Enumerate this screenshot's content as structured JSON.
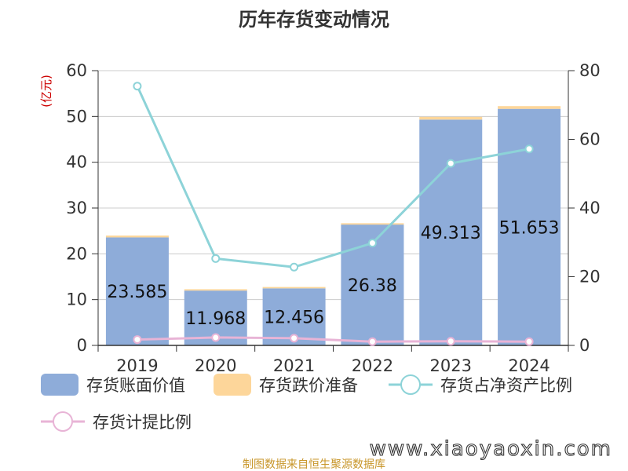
{
  "chart_data": {
    "type": "bar",
    "title": "历年存货变动情况",
    "categories": [
      "2019",
      "2020",
      "2021",
      "2022",
      "2023",
      "2024"
    ],
    "series": [
      {
        "name": "存货账面价值",
        "kind": "bar",
        "axis": "left",
        "stack": "s",
        "color": "#8eacd9",
        "values": [
          23.585,
          11.968,
          12.456,
          26.38,
          49.313,
          51.653
        ]
      },
      {
        "name": "存货跌价准备",
        "kind": "bar",
        "axis": "left",
        "stack": "s",
        "color": "#fdd69a",
        "values": [
          0.4,
          0.3,
          0.3,
          0.3,
          0.6,
          0.6
        ]
      },
      {
        "name": "存货占净资产比例",
        "kind": "line",
        "axis": "right",
        "color": "#8dd3d8",
        "values": [
          75.5,
          25.3,
          22.8,
          29.8,
          53.0,
          57.2
        ]
      },
      {
        "name": "存货计提比例",
        "kind": "line",
        "axis": "right",
        "color": "#e8b4d6",
        "values": [
          1.7,
          2.3,
          2.1,
          1.1,
          1.2,
          1.1
        ]
      }
    ],
    "data_labels": [
      "23.585",
      "11.968",
      "12.456",
      "26.38",
      "49.313",
      "51.653"
    ],
    "y_left": {
      "unit": "(亿元)",
      "ylim": [
        0,
        60
      ],
      "ticks": [
        0,
        10,
        20,
        30,
        40,
        50,
        60
      ]
    },
    "y_right": {
      "ylim": [
        0,
        80
      ],
      "ticks": [
        0,
        20,
        40,
        60,
        80
      ]
    },
    "grid": true,
    "legend_position": "bottom"
  },
  "source_text": "制图数据来自恒生聚源数据库",
  "watermark": "www.xiaoyaoxin.com"
}
